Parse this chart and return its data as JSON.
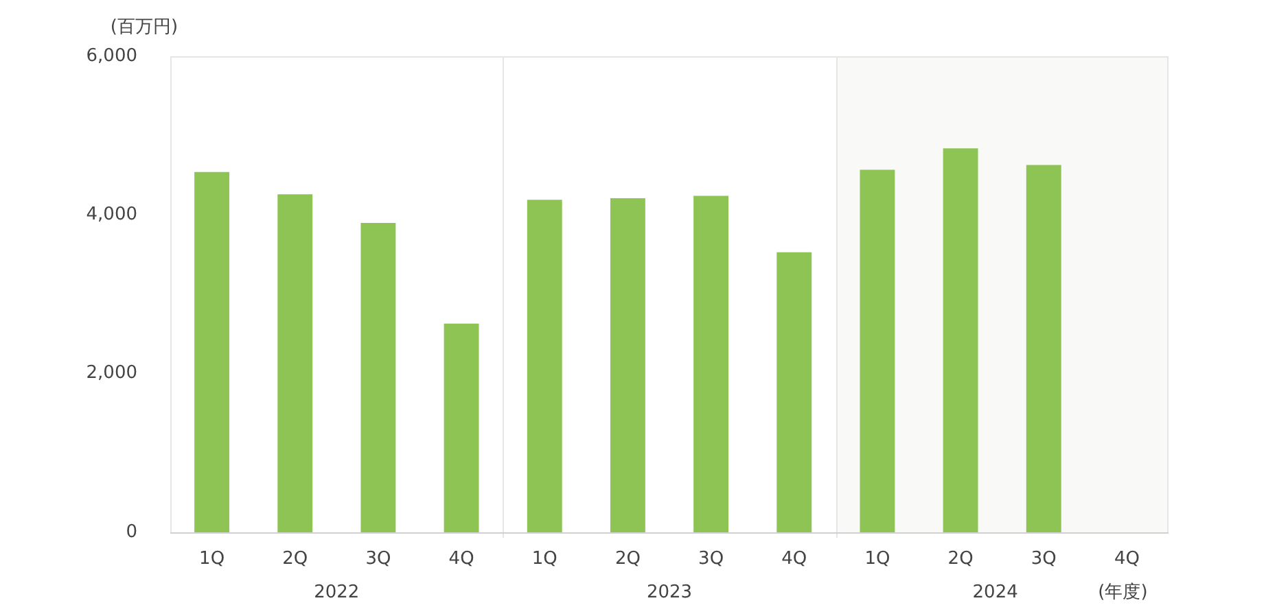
{
  "chart_data": {
    "type": "bar",
    "ylabel": "(百万円)",
    "xlabel": "(年度)",
    "categories": [
      "1Q",
      "2Q",
      "3Q",
      "4Q",
      "1Q",
      "2Q",
      "3Q",
      "4Q",
      "1Q",
      "2Q",
      "3Q",
      "4Q"
    ],
    "values": [
      4540,
      4260,
      3900,
      2630,
      4190,
      4210,
      4240,
      3530,
      4570,
      4840,
      4630,
      null
    ],
    "color": "#8dc454",
    "ylim": [
      0,
      6000
    ],
    "yticks": [
      0,
      {
        "value": 2000,
        "label": "2,000"
      },
      {
        "value": 4000,
        "label": "4,000"
      },
      {
        "value": 6000,
        "label": "6,000"
      }
    ],
    "grid": false,
    "annotations": [
      "2022",
      "2023",
      "2024"
    ],
    "legend": false
  }
}
